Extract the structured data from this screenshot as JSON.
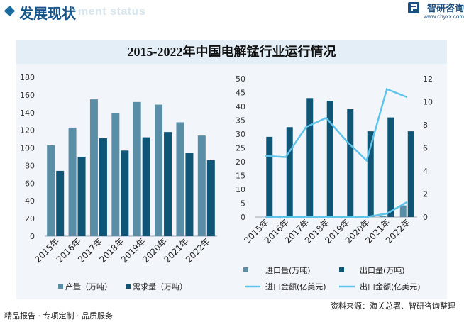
{
  "header": {
    "section_title": "发展现状",
    "section_subtitle": "ment status",
    "brand_name": "智研咨询",
    "brand_url": "www.chyxx.com"
  },
  "colors": {
    "light_bar": "#5a8ea6",
    "dark_bar": "#0f5576",
    "line": "#5ec4ea",
    "brand": "#1a4f7f"
  },
  "chart_title": "2015-2022年中国电解锰行业运行情况",
  "chart_data": [
    {
      "type": "bar",
      "categories": [
        "2015年",
        "2016年",
        "2017年",
        "2018年",
        "2019年",
        "2020年",
        "2021年",
        "2022年"
      ],
      "series": [
        {
          "name": "产量（万吨）",
          "values": [
            103,
            123,
            155,
            139,
            152,
            149,
            129,
            114
          ]
        },
        {
          "name": "需求量（万吨）",
          "values": [
            74,
            90,
            111,
            97,
            112,
            118,
            94,
            86
          ]
        }
      ],
      "ylim": [
        0,
        180
      ],
      "yticks": [
        0,
        20,
        40,
        60,
        80,
        100,
        120,
        140,
        160,
        180
      ],
      "legend": "bottom"
    },
    {
      "type": "bar",
      "categories": [
        "2015年",
        "2016年",
        "2017年",
        "2018年",
        "2019年",
        "2020年",
        "2021年",
        "2022年"
      ],
      "series": [
        {
          "name": "进口量(万吨)",
          "type": "bar",
          "axis": "left",
          "values": [
            0,
            0,
            0,
            0,
            0,
            0,
            0.3,
            4.2
          ]
        },
        {
          "name": "出口量(万吨)",
          "type": "bar",
          "axis": "left",
          "values": [
            29,
            32.5,
            43,
            42,
            39,
            31,
            36,
            31
          ]
        },
        {
          "name": "进口金额(亿美元)",
          "type": "line",
          "axis": "right",
          "values": [
            0,
            0,
            0,
            0,
            0,
            0,
            0.3,
            1.3
          ]
        },
        {
          "name": "出口金额(亿美元)",
          "type": "line",
          "axis": "right",
          "values": [
            5.3,
            5.2,
            7.8,
            8.6,
            6.6,
            4.9,
            11.1,
            10.4
          ]
        }
      ],
      "ylim_left": [
        0,
        50
      ],
      "yticks_left": [
        0,
        5,
        10,
        15,
        20,
        25,
        30,
        35,
        40,
        45,
        50
      ],
      "ylim_right": [
        0,
        12
      ],
      "yticks_right": [
        0,
        2,
        4,
        6,
        8,
        10,
        12
      ],
      "legend": "bottom"
    }
  ],
  "footer": {
    "tagline": "精品报告 · 专项定制 · 品质服务",
    "source": "资料来源：海关总署、智研咨询整理"
  }
}
